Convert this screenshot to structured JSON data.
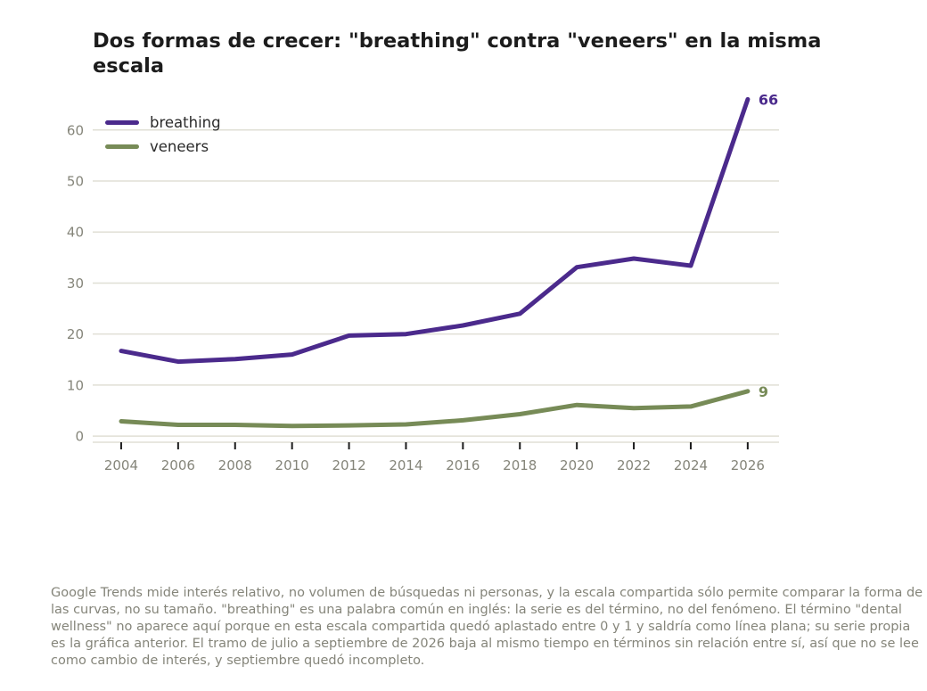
{
  "title": "Dos formas de crecer: \"breathing\" contra \"veneers\" en la misma escala",
  "note": "Google Trends mide interés relativo, no volumen de búsquedas ni personas, y la escala compartida sólo permite comparar la forma de las curvas, no su tamaño. \"breathing\" es una palabra común en inglés: la serie es del término, no del fenómeno. El término \"dental wellness\" no aparece aquí porque en esta escala compartida quedó aplastado entre 0 y 1 y saldría como línea plana; su serie propia es la gráfica anterior. El tramo de julio a septiembre de 2026 baja al mismo tiempo en términos sin relación entre sí, así que no se lee como cambio de interés, y septiembre quedó incompleto.",
  "chart_data": {
    "type": "line",
    "title": "Dos formas de crecer: \"breathing\" contra \"veneers\" en la misma escala",
    "x": [
      2004,
      2006,
      2008,
      2010,
      2012,
      2014,
      2016,
      2018,
      2020,
      2022,
      2024,
      2026
    ],
    "x_ticks": [
      "2004",
      "2006",
      "2008",
      "2010",
      "2012",
      "2014",
      "2016",
      "2018",
      "2020",
      "2022",
      "2024",
      "2026"
    ],
    "y_ticks": [
      "0",
      "10",
      "20",
      "30",
      "40",
      "50",
      "60"
    ],
    "xlim": [
      2003,
      2027.1
    ],
    "ylim": [
      -1.2,
      68
    ],
    "grid": "horizontal",
    "legend_position": "top-left",
    "series": [
      {
        "name": "breathing",
        "color": "#4b2a8c",
        "values": [
          16.7,
          14.6,
          15.1,
          16.0,
          19.7,
          20.0,
          21.7,
          24.0,
          33.1,
          34.8,
          33.4,
          66
        ],
        "end_label": "66"
      },
      {
        "name": "veneers",
        "color": "#778b57",
        "values": [
          2.9,
          2.2,
          2.2,
          2.0,
          2.1,
          2.3,
          3.1,
          4.3,
          6.1,
          5.5,
          5.8,
          8.8
        ],
        "end_label": "9"
      }
    ],
    "colors": {
      "grid": "#e0dfd5",
      "tick_text": "#85857a",
      "axis_line": "#e0dfd5",
      "tick_mark": "#1c1c1c"
    }
  }
}
